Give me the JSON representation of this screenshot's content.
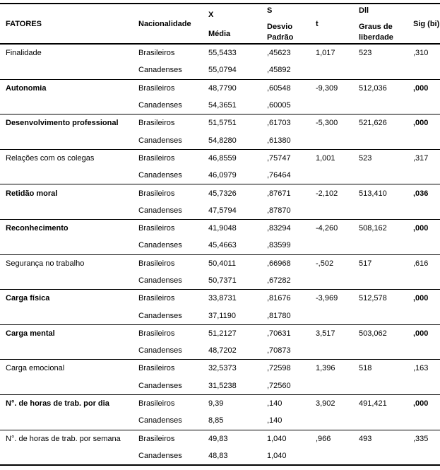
{
  "header": {
    "fatores": "FATORES",
    "nacionalidade": "Nacionalidade",
    "media_symbol": "X",
    "media_label": "Média",
    "sd_symbol": "S",
    "sd_label": "Desvio Padrão",
    "t": "t",
    "df_symbol": "Dll",
    "df_label": "Graus de liberdade",
    "sig": "Sig (bi)"
  },
  "rows": [
    {
      "factor": "Finalidade",
      "bold": false,
      "groups": [
        {
          "nationality": "Brasileiros",
          "media": "55,5433",
          "desvio": ",45623"
        },
        {
          "nationality": "Canadenses",
          "media": "55,0794",
          "desvio": ",45892"
        }
      ],
      "t": "1,017",
      "df": "523",
      "sig": ",310"
    },
    {
      "factor": "Autonomia",
      "bold": true,
      "groups": [
        {
          "nationality": "Brasileiros",
          "media": "48,7790",
          "desvio": ",60548"
        },
        {
          "nationality": "Canadenses",
          "media": "54,3651",
          "desvio": ",60005"
        }
      ],
      "t": "-9,309",
      "df": "512,036",
      "sig": ",000"
    },
    {
      "factor": "Desenvolvimento professional",
      "bold": true,
      "groups": [
        {
          "nationality": "Brasileiros",
          "media": "51,5751",
          "desvio": ",61703"
        },
        {
          "nationality": "Canadenses",
          "media": "54,8280",
          "desvio": ",61380"
        }
      ],
      "t": "-5,300",
      "df": "521,626",
      "sig": ",000"
    },
    {
      "factor": "Relações com os colegas",
      "bold": false,
      "groups": [
        {
          "nationality": "Brasileiros",
          "media": "46,8559",
          "desvio": ",75747"
        },
        {
          "nationality": "Canadenses",
          "media": "46,0979",
          "desvio": ",76464"
        }
      ],
      "t": "1,001",
      "df": "523",
      "sig": ",317"
    },
    {
      "factor": "Retidão moral",
      "bold": true,
      "groups": [
        {
          "nationality": "Brasileiros",
          "media": "45,7326",
          "desvio": ",87671"
        },
        {
          "nationality": "Canadenses",
          "media": "47,5794",
          "desvio": ",87870"
        }
      ],
      "t": "-2,102",
      "df": "513,410",
      "sig": ",036"
    },
    {
      "factor": "Reconhecimento",
      "bold": true,
      "groups": [
        {
          "nationality": "Brasileiros",
          "media": "41,9048",
          "desvio": ",83294"
        },
        {
          "nationality": "Canadenses",
          "media": "45,4663",
          "desvio": ",83599"
        }
      ],
      "t": "-4,260",
      "df": "508,162",
      "sig": ",000"
    },
    {
      "factor": "Segurança no trabalho",
      "bold": false,
      "groups": [
        {
          "nationality": "Brasileiros",
          "media": "50,4011",
          "desvio": ",66968"
        },
        {
          "nationality": "Canadenses",
          "media": "50,7371",
          "desvio": ",67282"
        }
      ],
      "t": "-,502",
      "df": "517",
      "sig": ",616"
    },
    {
      "factor": "Carga física",
      "bold": true,
      "groups": [
        {
          "nationality": "Brasileiros",
          "media": "33,8731",
          "desvio": ",81676"
        },
        {
          "nationality": "Canadenses",
          "media": "37,1190",
          "desvio": ",81780"
        }
      ],
      "t": "-3,969",
      "df": "512,578",
      "sig": ",000"
    },
    {
      "factor": "Carga mental",
      "bold": true,
      "groups": [
        {
          "nationality": "Brasileiros",
          "media": "51,2127",
          "desvio": ",70631"
        },
        {
          "nationality": "Canadenses",
          "media": "48,7202",
          "desvio": ",70873"
        }
      ],
      "t": "3,517",
      "df": "503,062",
      "sig": ",000"
    },
    {
      "factor": "Carga emocional",
      "bold": false,
      "groups": [
        {
          "nationality": "Brasileiros",
          "media": "32,5373",
          "desvio": ",72598"
        },
        {
          "nationality": "Canadenses",
          "media": "31,5238",
          "desvio": ",72560"
        }
      ],
      "t": "1,396",
      "df": "518",
      "sig": ",163"
    },
    {
      "factor": "N°. de horas de trab. por dia",
      "bold": true,
      "groups": [
        {
          "nationality": "Brasileiros",
          "media": "9,39",
          "desvio": ",140"
        },
        {
          "nationality": "Canadenses",
          "media": "8,85",
          "desvio": ",140"
        }
      ],
      "t": "3,902",
      "df": "491,421",
      "sig": ",000"
    },
    {
      "factor": "N°. de horas de trab. por semana",
      "bold": false,
      "groups": [
        {
          "nationality": "Brasileiros",
          "media": "49,83",
          "desvio": "1,040"
        },
        {
          "nationality": "Canadenses",
          "media": "48,83",
          "desvio": "1,040"
        }
      ],
      "t": ",966",
      "df": "493",
      "sig": ",335"
    }
  ]
}
